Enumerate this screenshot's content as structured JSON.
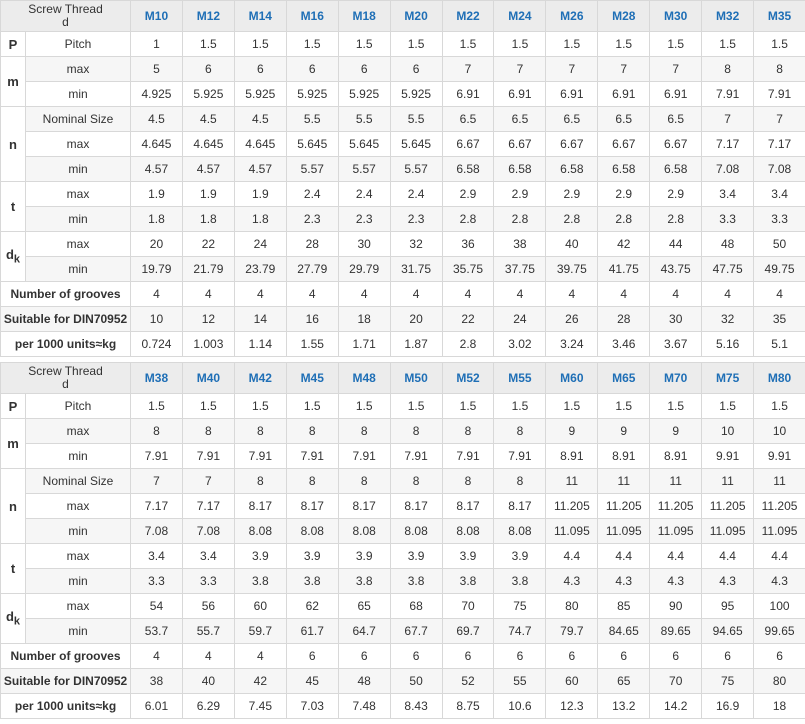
{
  "tables": [
    {
      "header": {
        "title": "Screw Thread",
        "symbol": "d",
        "sizes": [
          "M10",
          "M12",
          "M14",
          "M16",
          "M18",
          "M20",
          "M22",
          "M24",
          "M26",
          "M28",
          "M30",
          "M32",
          "M35"
        ]
      },
      "groups": [
        {
          "symbol": "P",
          "rows": [
            {
              "label": "Pitch",
              "values": [
                1,
                1.5,
                1.5,
                1.5,
                1.5,
                1.5,
                1.5,
                1.5,
                1.5,
                1.5,
                1.5,
                1.5,
                1.5
              ]
            }
          ]
        },
        {
          "symbol": "m",
          "rows": [
            {
              "label": "max",
              "values": [
                5,
                6,
                6,
                6,
                6,
                6,
                7,
                7,
                7,
                7,
                7,
                8,
                8
              ]
            },
            {
              "label": "min",
              "values": [
                4.925,
                5.925,
                5.925,
                5.925,
                5.925,
                5.925,
                6.91,
                6.91,
                6.91,
                6.91,
                6.91,
                7.91,
                7.91
              ]
            }
          ]
        },
        {
          "symbol": "n",
          "rows": [
            {
              "label": "Nominal Size",
              "values": [
                4.5,
                4.5,
                4.5,
                5.5,
                5.5,
                5.5,
                6.5,
                6.5,
                6.5,
                6.5,
                6.5,
                7,
                7
              ]
            },
            {
              "label": "max",
              "values": [
                4.645,
                4.645,
                4.645,
                5.645,
                5.645,
                5.645,
                6.67,
                6.67,
                6.67,
                6.67,
                6.67,
                7.17,
                7.17
              ]
            },
            {
              "label": "min",
              "values": [
                4.57,
                4.57,
                4.57,
                5.57,
                5.57,
                5.57,
                6.58,
                6.58,
                6.58,
                6.58,
                6.58,
                7.08,
                7.08
              ]
            }
          ]
        },
        {
          "symbol": "t",
          "rows": [
            {
              "label": "max",
              "values": [
                1.9,
                1.9,
                1.9,
                2.4,
                2.4,
                2.4,
                2.9,
                2.9,
                2.9,
                2.9,
                2.9,
                3.4,
                3.4
              ]
            },
            {
              "label": "min",
              "values": [
                1.8,
                1.8,
                1.8,
                2.3,
                2.3,
                2.3,
                2.8,
                2.8,
                2.8,
                2.8,
                2.8,
                3.3,
                3.3
              ]
            }
          ]
        },
        {
          "symbol": "d",
          "symbol_sub": "k",
          "rows": [
            {
              "label": "max",
              "values": [
                20,
                22,
                24,
                28,
                30,
                32,
                36,
                38,
                40,
                42,
                44,
                48,
                50
              ]
            },
            {
              "label": "min",
              "values": [
                19.79,
                21.79,
                23.79,
                27.79,
                29.79,
                31.75,
                35.75,
                37.75,
                39.75,
                41.75,
                43.75,
                47.75,
                49.75
              ]
            }
          ]
        },
        {
          "rows": [
            {
              "label": "Number of grooves",
              "values": [
                4,
                4,
                4,
                4,
                4,
                4,
                4,
                4,
                4,
                4,
                4,
                4,
                4
              ]
            }
          ]
        },
        {
          "rows": [
            {
              "label": "Suitable for DIN70952",
              "values": [
                10,
                12,
                14,
                16,
                18,
                20,
                22,
                24,
                26,
                28,
                30,
                32,
                35
              ]
            }
          ]
        },
        {
          "rows": [
            {
              "label": "per 1000 units≈kg",
              "values": [
                0.724,
                1.003,
                1.14,
                1.55,
                1.71,
                1.87,
                2.8,
                3.02,
                3.24,
                3.46,
                3.67,
                5.16,
                5.1
              ]
            }
          ]
        }
      ]
    },
    {
      "header": {
        "title": "Screw Thread",
        "symbol": "d",
        "sizes": [
          "M38",
          "M40",
          "M42",
          "M45",
          "M48",
          "M50",
          "M52",
          "M55",
          "M60",
          "M65",
          "M70",
          "M75",
          "M80"
        ]
      },
      "groups": [
        {
          "symbol": "P",
          "rows": [
            {
              "label": "Pitch",
              "values": [
                1.5,
                1.5,
                1.5,
                1.5,
                1.5,
                1.5,
                1.5,
                1.5,
                1.5,
                1.5,
                1.5,
                1.5,
                1.5
              ]
            }
          ]
        },
        {
          "symbol": "m",
          "rows": [
            {
              "label": "max",
              "values": [
                8,
                8,
                8,
                8,
                8,
                8,
                8,
                8,
                9,
                9,
                9,
                10,
                10
              ]
            },
            {
              "label": "min",
              "values": [
                7.91,
                7.91,
                7.91,
                7.91,
                7.91,
                7.91,
                7.91,
                7.91,
                8.91,
                8.91,
                8.91,
                9.91,
                9.91
              ]
            }
          ]
        },
        {
          "symbol": "n",
          "rows": [
            {
              "label": "Nominal Size",
              "values": [
                7,
                7,
                8,
                8,
                8,
                8,
                8,
                8,
                11,
                11,
                11,
                11,
                11
              ]
            },
            {
              "label": "max",
              "values": [
                7.17,
                7.17,
                8.17,
                8.17,
                8.17,
                8.17,
                8.17,
                8.17,
                11.205,
                11.205,
                11.205,
                11.205,
                11.205
              ]
            },
            {
              "label": "min",
              "values": [
                7.08,
                7.08,
                8.08,
                8.08,
                8.08,
                8.08,
                8.08,
                8.08,
                11.095,
                11.095,
                11.095,
                11.095,
                11.095
              ]
            }
          ]
        },
        {
          "symbol": "t",
          "rows": [
            {
              "label": "max",
              "values": [
                3.4,
                3.4,
                3.9,
                3.9,
                3.9,
                3.9,
                3.9,
                3.9,
                4.4,
                4.4,
                4.4,
                4.4,
                4.4
              ]
            },
            {
              "label": "min",
              "values": [
                3.3,
                3.3,
                3.8,
                3.8,
                3.8,
                3.8,
                3.8,
                3.8,
                4.3,
                4.3,
                4.3,
                4.3,
                4.3
              ]
            }
          ]
        },
        {
          "symbol": "d",
          "symbol_sub": "k",
          "rows": [
            {
              "label": "max",
              "values": [
                54,
                56,
                60,
                62,
                65,
                68,
                70,
                75,
                80,
                85,
                90,
                95,
                100
              ]
            },
            {
              "label": "min",
              "values": [
                53.7,
                55.7,
                59.7,
                61.7,
                64.7,
                67.7,
                69.7,
                74.7,
                79.7,
                84.65,
                89.65,
                94.65,
                99.65
              ]
            }
          ]
        },
        {
          "rows": [
            {
              "label": "Number of grooves",
              "values": [
                4,
                4,
                4,
                6,
                6,
                6,
                6,
                6,
                6,
                6,
                6,
                6,
                6
              ]
            }
          ]
        },
        {
          "rows": [
            {
              "label": "Suitable for DIN70952",
              "values": [
                38,
                40,
                42,
                45,
                48,
                50,
                52,
                55,
                60,
                65,
                70,
                75,
                80
              ]
            }
          ]
        },
        {
          "rows": [
            {
              "label": "per 1000 units≈kg",
              "values": [
                6.01,
                6.29,
                7.45,
                7.03,
                7.48,
                8.43,
                8.75,
                10.6,
                12.3,
                13.2,
                14.2,
                16.9,
                18
              ]
            }
          ]
        }
      ]
    }
  ]
}
